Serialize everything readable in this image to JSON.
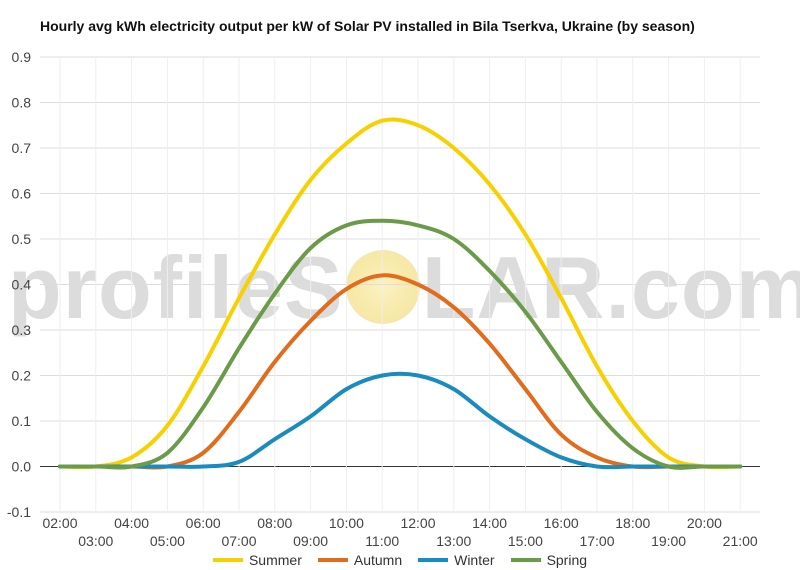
{
  "chart_data": {
    "type": "line",
    "title": "Hourly avg kWh electricity output per kW of Solar PV installed in Bila Tserkva, Ukraine (by season)",
    "watermark": {
      "left": "profileS",
      "right": "LAR.com"
    },
    "x": [
      "02:00",
      "03:00",
      "04:00",
      "05:00",
      "06:00",
      "07:00",
      "08:00",
      "09:00",
      "10:00",
      "11:00",
      "12:00",
      "13:00",
      "14:00",
      "15:00",
      "16:00",
      "17:00",
      "18:00",
      "19:00",
      "20:00",
      "21:00"
    ],
    "ylim": [
      -0.1,
      0.9
    ],
    "yticks": [
      "0.9",
      "0.8",
      "0.7",
      "0.6",
      "0.5",
      "0.4",
      "0.3",
      "0.2",
      "0.1",
      "0.0",
      "-0.1"
    ],
    "grid": true,
    "legend_position": "bottom",
    "series": [
      {
        "name": "Summer",
        "color": "#f7d000",
        "values": [
          0.0,
          0.0,
          0.02,
          0.09,
          0.22,
          0.37,
          0.51,
          0.63,
          0.71,
          0.76,
          0.75,
          0.7,
          0.62,
          0.51,
          0.37,
          0.22,
          0.1,
          0.02,
          0.0,
          0.0
        ]
      },
      {
        "name": "Autumn",
        "color": "#e06c1c",
        "values": [
          0.0,
          0.0,
          0.0,
          0.0,
          0.03,
          0.12,
          0.23,
          0.32,
          0.39,
          0.42,
          0.4,
          0.35,
          0.27,
          0.17,
          0.07,
          0.02,
          0.0,
          0.0,
          0.0,
          0.0
        ]
      },
      {
        "name": "Winter",
        "color": "#1a8bbf",
        "values": [
          0.0,
          0.0,
          0.0,
          0.0,
          0.0,
          0.01,
          0.06,
          0.11,
          0.17,
          0.2,
          0.2,
          0.17,
          0.11,
          0.06,
          0.02,
          0.0,
          0.0,
          0.0,
          0.0,
          0.0
        ]
      },
      {
        "name": "Spring",
        "color": "#6b9a48",
        "values": [
          0.0,
          0.0,
          0.0,
          0.03,
          0.13,
          0.26,
          0.38,
          0.48,
          0.53,
          0.54,
          0.53,
          0.5,
          0.43,
          0.34,
          0.23,
          0.12,
          0.04,
          0.0,
          0.0,
          0.0
        ]
      }
    ]
  }
}
